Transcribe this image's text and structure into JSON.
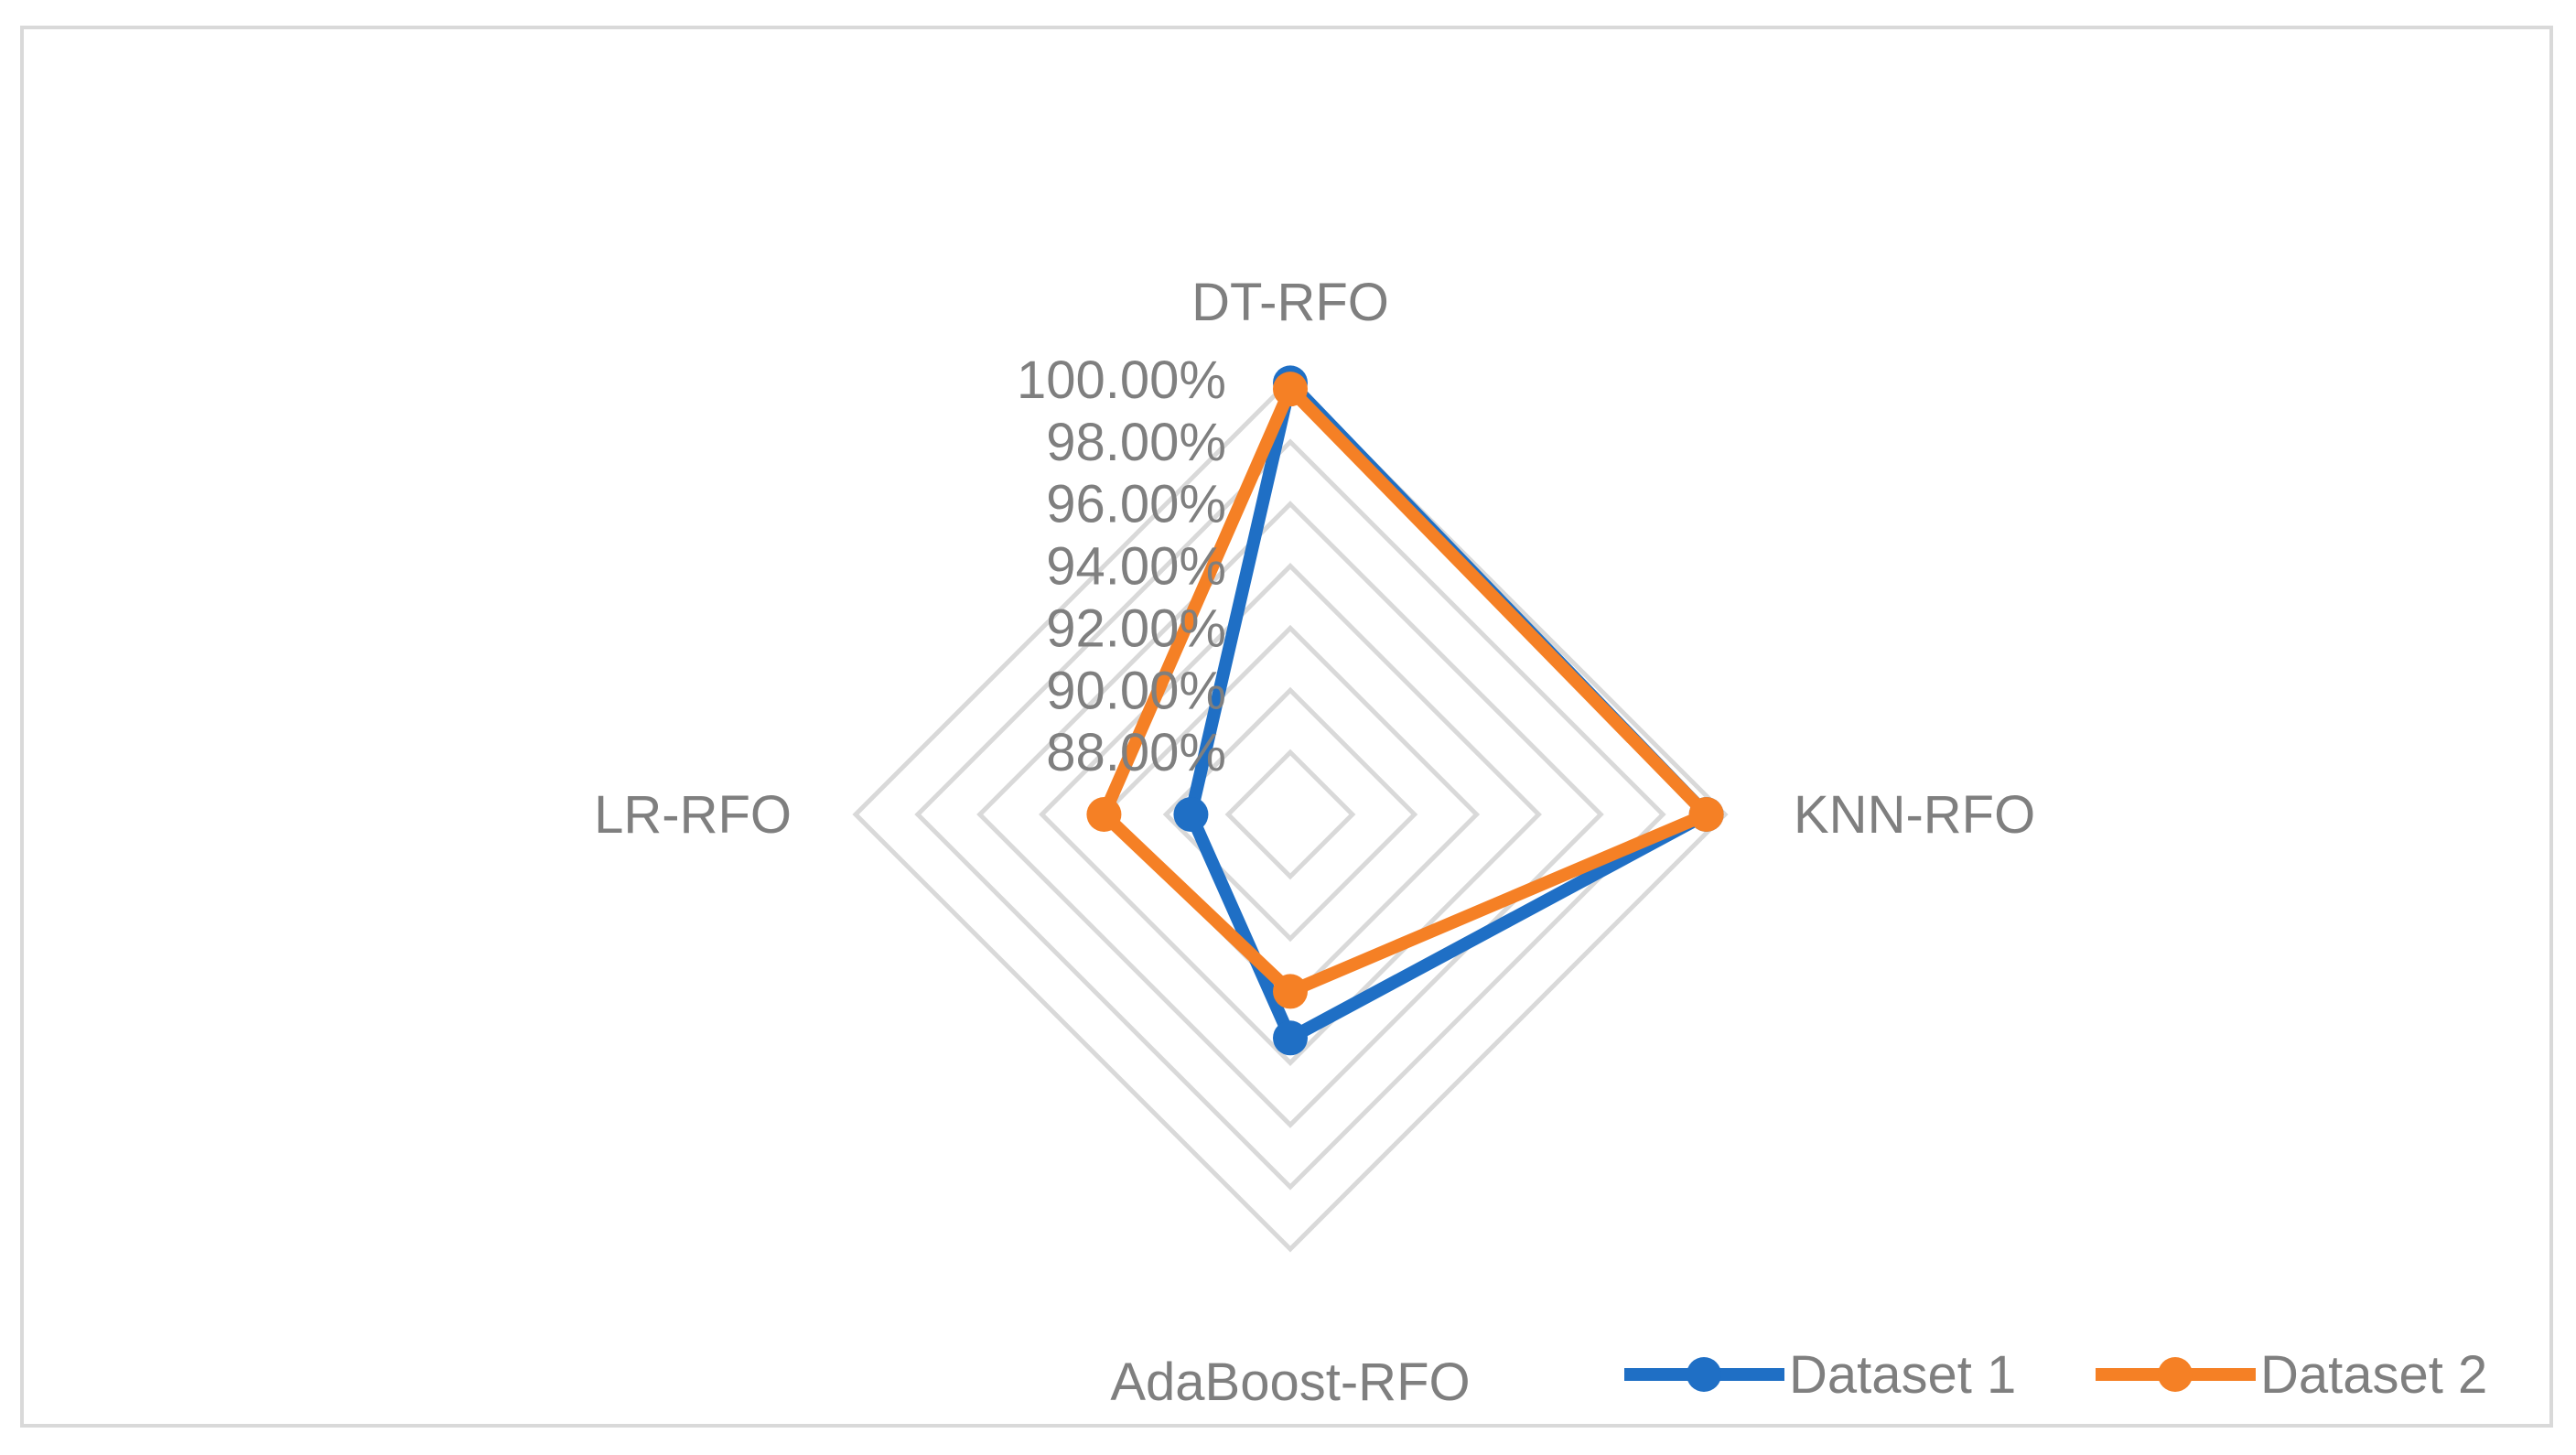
{
  "chart_data": {
    "type": "radar",
    "categories": [
      "DT-RFO",
      "KNN-RFO",
      "AdaBoost-RFO",
      "LR-RFO"
    ],
    "series": [
      {
        "name": "Dataset 1",
        "values": [
          99.9,
          99.4,
          93.2,
          89.2
        ],
        "color": "#1f6fc5"
      },
      {
        "name": "Dataset 2",
        "values": [
          99.7,
          99.4,
          91.7,
          92.0
        ],
        "color": "#f58025"
      }
    ],
    "rlim": [
      86.0,
      100.0
    ],
    "ticks": [
      "88.00%",
      "90.00%",
      "92.00%",
      "94.00%",
      "96.00%",
      "98.00%",
      "100.00%"
    ],
    "tick_values": [
      88,
      90,
      92,
      94,
      96,
      98,
      100
    ],
    "grid": true,
    "legend_position": "bottom-right"
  }
}
